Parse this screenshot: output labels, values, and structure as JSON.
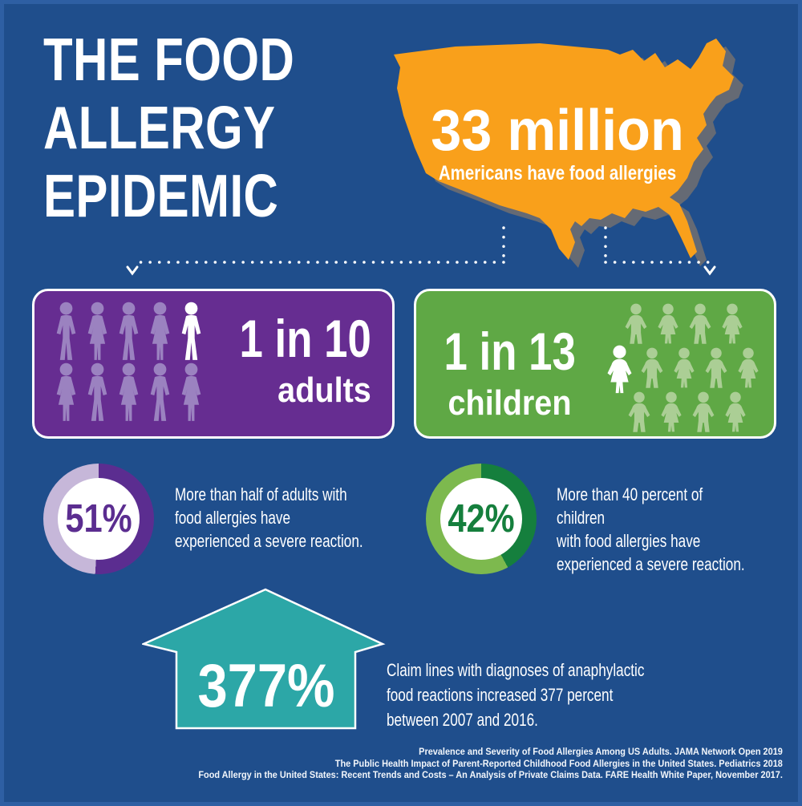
{
  "page": {
    "background": "#1f4e8c",
    "frame_border": "#2e5fa3"
  },
  "title": {
    "lines": [
      "THE FOOD",
      "ALLERGY",
      "EPIDEMIC"
    ]
  },
  "map": {
    "fill_color": "#f9a01b",
    "shadow_color": "#6d6e71",
    "stat_value": "33 million",
    "stat_label": "Americans have food allergies"
  },
  "adults_card": {
    "background": "#662d91",
    "icon_color": "#9b82c0",
    "highlight_color": "#ffffff",
    "ratio": "1 in 10",
    "label": "adults",
    "rows": [
      [
        "m",
        "f",
        "m",
        "f",
        "M"
      ],
      [
        "f",
        "m",
        "f",
        "m",
        "f"
      ]
    ]
  },
  "children_card": {
    "background": "#5fa845",
    "icon_color": "#abce95",
    "highlight_color": "#ffffff",
    "ratio": "1 in 13",
    "label": "children",
    "rows": [
      [
        "b",
        "g",
        "b",
        "g"
      ],
      [
        "G",
        "b",
        "g",
        "b",
        "g"
      ],
      [
        "b",
        "g",
        "b",
        "g"
      ]
    ]
  },
  "adult_stat": {
    "pct_label": "51%",
    "value": 51,
    "dark_color": "#5b2d90",
    "light_color": "#c6b7d9",
    "lines": [
      "More than half of adults with",
      "food allergies have",
      "experienced a severe reaction."
    ]
  },
  "child_stat": {
    "pct_label": "42%",
    "value": 42,
    "dark_color": "#157f3d",
    "light_color": "#7db94e",
    "lines": [
      "More than 40 percent of children",
      "with food allergies have",
      "experienced a severe reaction."
    ]
  },
  "increase_stat": {
    "pct_label": "377%",
    "value": 377,
    "arrow_color": "#2ca7a7",
    "lines": [
      "Claim lines with diagnoses of anaphylactic",
      "food reactions increased 377 percent",
      "between 2007 and 2016."
    ]
  },
  "sources": [
    "Prevalence and Severity of Food Allergies Among US Adults. JAMA Network Open 2019",
    "The Public Health Impact of Parent-Reported Childhood Food Allergies in the United States. Pediatrics 2018",
    "Food Allergy in the United States: Recent Trends and Costs – An Analysis of Private Claims Data. FARE Health White Paper, November 2017."
  ],
  "chart_data": [
    {
      "type": "pictograph",
      "title": "33 million Americans have food allergies",
      "value": 33000000,
      "unit": "people"
    },
    {
      "type": "pictograph",
      "title": "1 in 10 adults",
      "numerator": 1,
      "denominator": 10,
      "total_icons": 10,
      "highlighted_icons": 1,
      "icon_rows": [
        [
          "male",
          "female",
          "male",
          "female",
          "male-highlighted"
        ],
        [
          "female",
          "male",
          "female",
          "male",
          "female"
        ]
      ]
    },
    {
      "type": "pictograph",
      "title": "1 in 13 children",
      "numerator": 1,
      "denominator": 13,
      "total_icons": 13,
      "highlighted_icons": 1,
      "icon_rows": [
        [
          "boy",
          "girl",
          "boy",
          "girl"
        ],
        [
          "girl-highlighted",
          "boy",
          "girl",
          "boy",
          "girl"
        ],
        [
          "boy",
          "girl",
          "boy",
          "girl"
        ]
      ]
    },
    {
      "type": "pie",
      "title": "Adults with food allergies who experienced a severe reaction",
      "labels": [
        "severe reaction",
        "no severe reaction"
      ],
      "values": [
        51,
        49
      ],
      "center_label": "51%"
    },
    {
      "type": "pie",
      "title": "Children with food allergies who experienced a severe reaction",
      "labels": [
        "severe reaction",
        "no severe reaction"
      ],
      "values": [
        42,
        58
      ],
      "center_label": "42%"
    },
    {
      "type": "bar",
      "title": "Increase in claim lines with anaphylactic food reaction diagnoses, 2007-2016",
      "value": 377,
      "unit": "percent"
    }
  ]
}
